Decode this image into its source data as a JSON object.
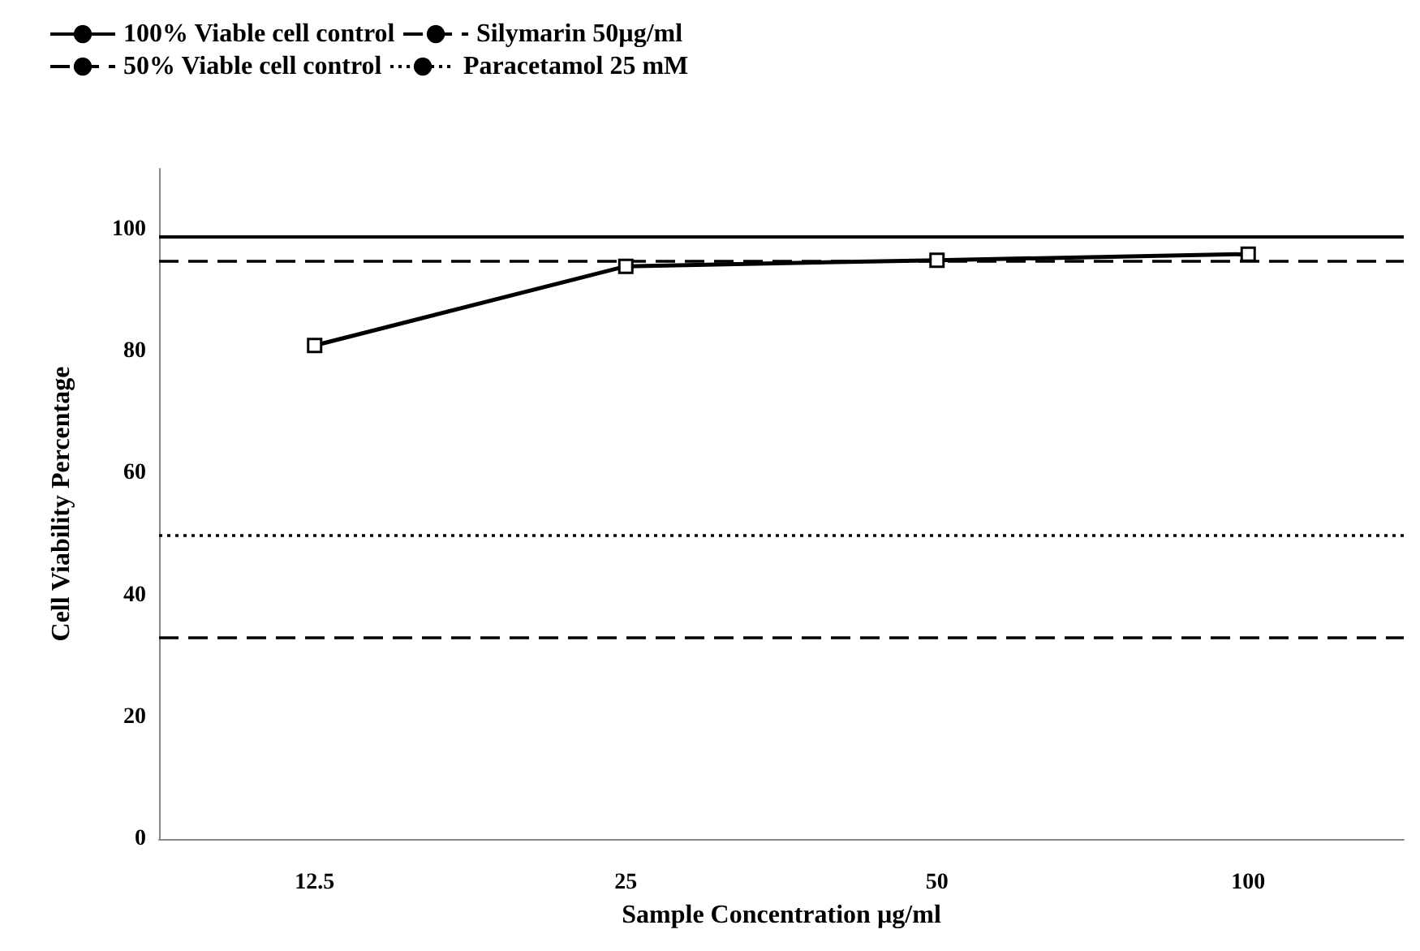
{
  "chart_data": {
    "type": "line",
    "xlabel": "Sample Concentration µg/ml",
    "ylabel": "Cell Viability Percentage",
    "categories": [
      "12.5",
      "25",
      "50",
      "100"
    ],
    "series": [
      {
        "color": "#000000",
        "values": [
          81,
          94,
          95,
          96
        ],
        "marker": "square",
        "line_style": "solid"
      }
    ],
    "ylim": [
      0,
      110
    ],
    "yticks": [
      0,
      20,
      40,
      60,
      80,
      100
    ],
    "grid": false,
    "legend": "top left",
    "ref_lines": [
      {
        "axis": "y",
        "value": 99,
        "label": "100% Viable cell control",
        "line_style": "solid",
        "color": "#000000"
      },
      {
        "axis": "y",
        "value": 33,
        "label": "50% Viable cell control",
        "line_style": "dashed",
        "color": "#000000"
      },
      {
        "axis": "y",
        "value": 95,
        "label": "Silymarin 50µg/ml",
        "line_style": "dashed",
        "color": "#000000"
      },
      {
        "axis": "y",
        "value": 50,
        "label": "Paracetamol 25 mM",
        "line_style": "dotted",
        "color": "#000000"
      }
    ]
  }
}
